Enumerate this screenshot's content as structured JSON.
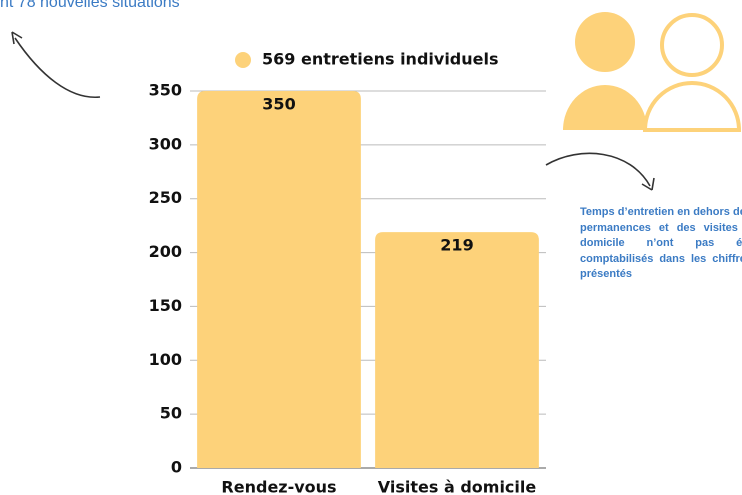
{
  "top_text": "nt 78 nouvelles situations",
  "note": "Temps d’entretien en dehors des permanences et des visites à domicile n’ont pas été comptabilisés dans les chiffres présentés",
  "chart_data": {
    "type": "bar",
    "legend": "569 entretiens individuels",
    "categories": [
      "Rendez-vous",
      "Visites à domicile"
    ],
    "values": [
      350,
      219
    ],
    "color": "#fdd27a",
    "ylim": [
      0,
      350
    ],
    "yticks": [
      0,
      50,
      100,
      150,
      200,
      250,
      300,
      350
    ],
    "grid": true
  }
}
